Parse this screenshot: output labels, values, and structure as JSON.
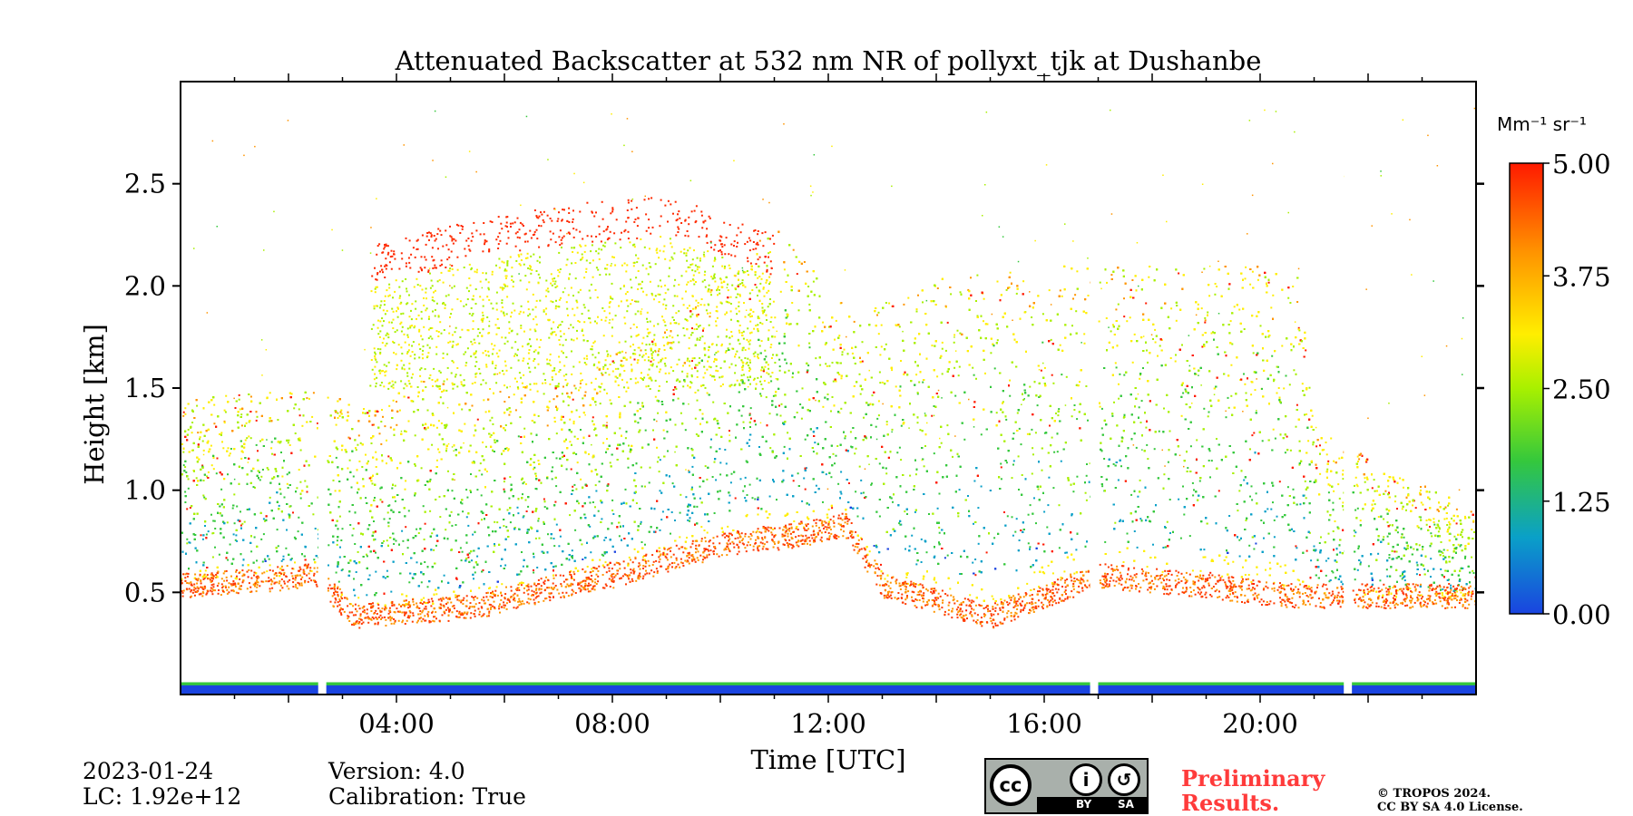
{
  "chart_data": {
    "type": "heatmap",
    "title": "Attenuated Backscatter at 532 nm NR of pollyxt_tjk at Dushanbe",
    "xlabel": "Time [UTC]",
    "ylabel": "Height [km]",
    "x_unit": "hours UTC",
    "xlim": [
      0,
      24
    ],
    "ylim": [
      0,
      3.0
    ],
    "xticks": [
      {
        "value": 4,
        "label": "04:00"
      },
      {
        "value": 8,
        "label": "08:00"
      },
      {
        "value": 12,
        "label": "12:00"
      },
      {
        "value": 16,
        "label": "16:00"
      },
      {
        "value": 20,
        "label": "20:00"
      }
    ],
    "yticks": [
      {
        "value": 0.5,
        "label": "0.5"
      },
      {
        "value": 1.0,
        "label": "1.0"
      },
      {
        "value": 1.5,
        "label": "1.5"
      },
      {
        "value": 2.0,
        "label": "2.0"
      },
      {
        "value": 2.5,
        "label": "2.5"
      }
    ],
    "colorbar": {
      "unit_label": "Mm⁻¹ sr⁻¹",
      "min": 0.0,
      "max": 5.0,
      "ticks": [
        "0.00",
        "1.25",
        "2.50",
        "3.75",
        "5.00"
      ],
      "colormap": [
        "#1a44e0",
        "#0aa0c8",
        "#35c83c",
        "#a8f000",
        "#ffee00",
        "#ff9500",
        "#ff1a00"
      ]
    },
    "data_gaps_hours": [
      [
        2.55,
        2.7
      ],
      [
        16.85,
        17.0
      ],
      [
        21.55,
        21.7
      ]
    ],
    "layers": {
      "aerosol_layer_top_km": [
        [
          0,
          1.45
        ],
        [
          2.5,
          1.5
        ],
        [
          3.5,
          1.4
        ],
        [
          4.5,
          1.55
        ],
        [
          6,
          1.5
        ],
        [
          7,
          1.55
        ],
        [
          9,
          1.8
        ],
        [
          11,
          2.3
        ],
        [
          12.5,
          1.85
        ],
        [
          14,
          2.05
        ],
        [
          16,
          2.1
        ],
        [
          18,
          2.1
        ],
        [
          20.7,
          2.1
        ],
        [
          21,
          1.3
        ],
        [
          24,
          0.9
        ]
      ],
      "aerosol_layer_base_km": [
        [
          0,
          0.5
        ],
        [
          2.5,
          0.55
        ],
        [
          3.2,
          0.35
        ],
        [
          5.5,
          0.4
        ],
        [
          7,
          0.5
        ],
        [
          8,
          0.55
        ],
        [
          10,
          0.7
        ],
        [
          11.5,
          0.75
        ],
        [
          12.3,
          0.8
        ],
        [
          13,
          0.5
        ],
        [
          15,
          0.35
        ],
        [
          16,
          0.45
        ],
        [
          17,
          0.55
        ],
        [
          19,
          0.5
        ],
        [
          20.5,
          0.45
        ],
        [
          21.5,
          0.45
        ],
        [
          24,
          0.45
        ]
      ],
      "upper_scattered_cloud_km": [
        [
          3.5,
          2.2
        ],
        [
          5,
          2.3
        ],
        [
          7,
          2.4
        ],
        [
          9,
          2.45
        ],
        [
          11,
          2.25
        ]
      ]
    }
  },
  "info": {
    "date": "2023-01-24",
    "lc": "LC: 1.92e+12",
    "version": "Version: 4.0",
    "calibration": "Calibration: True"
  },
  "license": {
    "cc_label": "cc",
    "by_label": "BY",
    "sa_label": "SA",
    "preliminary": "Preliminary Results.",
    "copyright_line1": "© TROPOS 2024.",
    "copyright_line2": "CC BY SA 4.0 License."
  }
}
